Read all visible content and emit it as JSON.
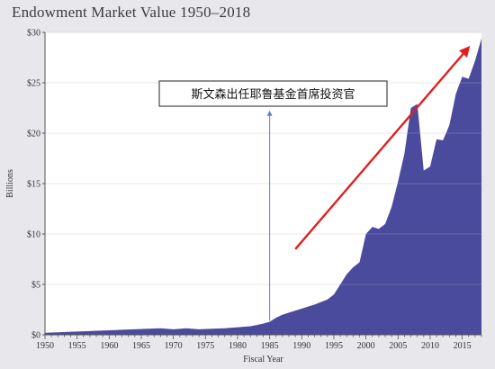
{
  "chart_data": {
    "type": "area",
    "title": "Endowment Market Value 1950–2018",
    "xlabel": "Fiscal Year",
    "ylabel": "Billions",
    "xlim": [
      1950,
      2018
    ],
    "ylim": [
      0,
      30
    ],
    "x_ticks": [
      1950,
      1955,
      1960,
      1965,
      1970,
      1975,
      1980,
      1985,
      1990,
      1995,
      2000,
      2005,
      2010,
      2015
    ],
    "y_ticks": [
      0,
      5,
      10,
      15,
      20,
      25,
      30
    ],
    "y_tick_labels": [
      "$0",
      "$5",
      "$10",
      "$15",
      "$20",
      "$25",
      "$30"
    ],
    "grid": "horizontal",
    "colors": {
      "area": "#4b4b9e",
      "arrow": "#e01f1f",
      "marker_line": "#5b7fc4"
    },
    "x": [
      1950,
      1952,
      1954,
      1956,
      1958,
      1960,
      1962,
      1964,
      1966,
      1968,
      1970,
      1972,
      1974,
      1976,
      1978,
      1980,
      1982,
      1984,
      1985,
      1986,
      1987,
      1988,
      1990,
      1992,
      1994,
      1995,
      1996,
      1997,
      1998,
      1999,
      2000,
      2001,
      2002,
      2003,
      2004,
      2005,
      2006,
      2007,
      2008,
      2009,
      2010,
      2011,
      2012,
      2013,
      2014,
      2015,
      2016,
      2017,
      2018
    ],
    "values": [
      0.2,
      0.25,
      0.3,
      0.35,
      0.4,
      0.45,
      0.5,
      0.55,
      0.6,
      0.65,
      0.55,
      0.65,
      0.55,
      0.6,
      0.65,
      0.75,
      0.85,
      1.1,
      1.3,
      1.7,
      2.0,
      2.2,
      2.6,
      3.0,
      3.5,
      4.0,
      5.0,
      6.0,
      6.7,
      7.2,
      10.0,
      10.7,
      10.5,
      11.0,
      12.7,
      15.2,
      18.0,
      22.5,
      22.9,
      16.3,
      16.7,
      19.4,
      19.3,
      20.8,
      23.9,
      25.6,
      25.4,
      27.2,
      29.4
    ],
    "annotations": [
      {
        "text": "斯文森出任耶鲁基金首席投资官",
        "x": 1985
      },
      {
        "type": "trend-arrow",
        "from": [
          1989,
          8.5
        ],
        "to": [
          2016,
          28.5
        ]
      }
    ]
  }
}
